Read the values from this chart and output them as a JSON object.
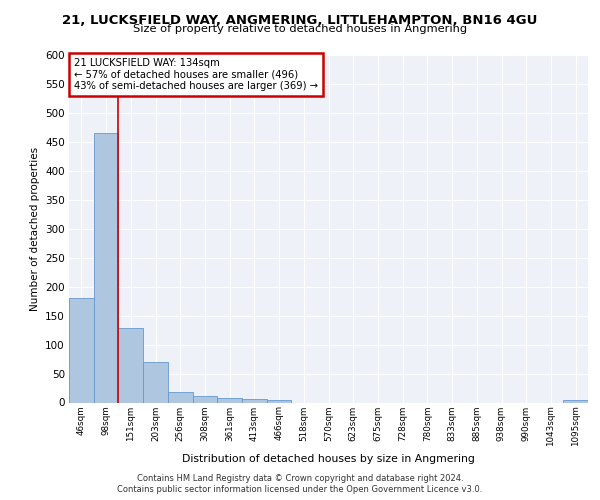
{
  "title1": "21, LUCKSFIELD WAY, ANGMERING, LITTLEHAMPTON, BN16 4GU",
  "title2": "Size of property relative to detached houses in Angmering",
  "xlabel": "Distribution of detached houses by size in Angmering",
  "ylabel": "Number of detached properties",
  "bin_labels": [
    "46sqm",
    "98sqm",
    "151sqm",
    "203sqm",
    "256sqm",
    "308sqm",
    "361sqm",
    "413sqm",
    "466sqm",
    "518sqm",
    "570sqm",
    "623sqm",
    "675sqm",
    "728sqm",
    "780sqm",
    "833sqm",
    "885sqm",
    "938sqm",
    "990sqm",
    "1043sqm",
    "1095sqm"
  ],
  "bin_values": [
    180,
    465,
    128,
    70,
    18,
    12,
    8,
    6,
    5,
    0,
    0,
    0,
    0,
    0,
    0,
    0,
    0,
    0,
    0,
    0,
    5
  ],
  "bar_color": "#aec6df",
  "bar_edge_color": "#6699cc",
  "vline_x_index": 2,
  "vline_color": "#cc0000",
  "annotation_text": "21 LUCKSFIELD WAY: 134sqm\n← 57% of detached houses are smaller (496)\n43% of semi-detached houses are larger (369) →",
  "annotation_box_color": "#ffffff",
  "annotation_box_edge": "#cc0000",
  "ylim": [
    0,
    600
  ],
  "yticks": [
    0,
    50,
    100,
    150,
    200,
    250,
    300,
    350,
    400,
    450,
    500,
    550,
    600
  ],
  "footer1": "Contains HM Land Registry data © Crown copyright and database right 2024.",
  "footer2": "Contains public sector information licensed under the Open Government Licence v3.0.",
  "bg_color": "#eef2f8",
  "grid_color": "#ffffff"
}
